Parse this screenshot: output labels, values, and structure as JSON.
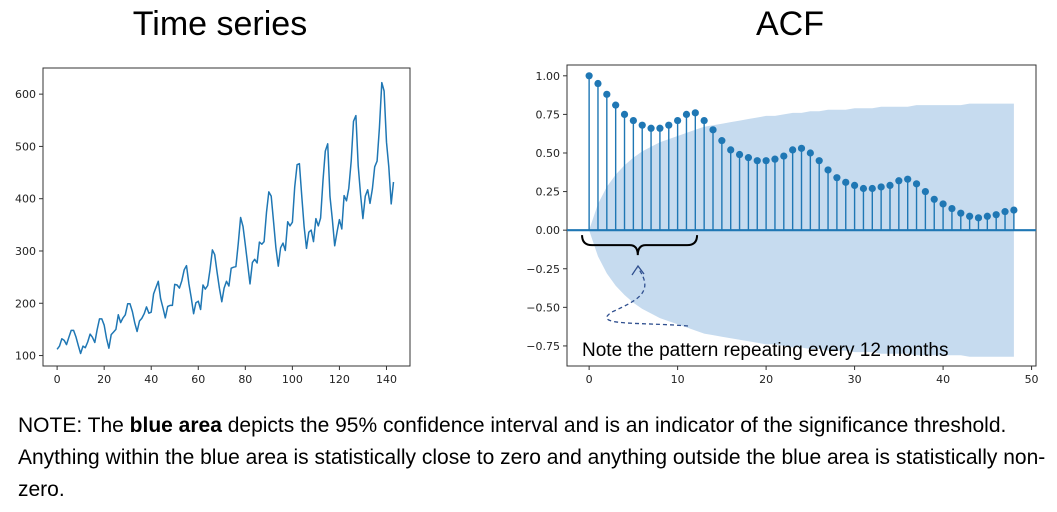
{
  "titles": {
    "left": "Time series",
    "right": "ACF"
  },
  "annotation": "Note the pattern repeating every 12 months",
  "footnote": {
    "prefix": "NOTE: The ",
    "bold": "blue area",
    "suffix": " depicts the 95% confidence interval and is an indicator of the significance threshold. Anything within the blue area is statistically close to zero and anything outside the blue area is statistically non-zero."
  },
  "colors": {
    "line": "#1f77b4",
    "band": "#c6dbef"
  },
  "chart_data": [
    {
      "type": "line",
      "title": "Time series",
      "xlabel": "",
      "ylabel": "",
      "xlim": [
        -6,
        150
      ],
      "ylim": [
        80,
        650
      ],
      "xticks": [
        0,
        20,
        40,
        60,
        80,
        100,
        120,
        140
      ],
      "yticks": [
        100,
        200,
        300,
        400,
        500,
        600
      ],
      "grid": false,
      "series": [
        {
          "values": [
            112,
            118,
            132,
            129,
            121,
            135,
            148,
            148,
            136,
            119,
            104,
            118,
            115,
            126,
            141,
            135,
            125,
            149,
            170,
            170,
            158,
            133,
            114,
            140,
            145,
            150,
            178,
            163,
            172,
            178,
            199,
            199,
            184,
            162,
            146,
            166,
            171,
            180,
            193,
            181,
            183,
            218,
            230,
            242,
            209,
            191,
            172,
            194,
            196,
            196,
            236,
            235,
            229,
            243,
            264,
            272,
            237,
            211,
            180,
            201,
            204,
            188,
            235,
            227,
            234,
            264,
            302,
            293,
            259,
            229,
            203,
            229,
            242,
            233,
            267,
            269,
            270,
            315,
            364,
            347,
            312,
            274,
            237,
            278,
            284,
            277,
            317,
            313,
            318,
            374,
            413,
            405,
            355,
            306,
            271,
            306,
            315,
            301,
            356,
            348,
            355,
            422,
            465,
            467,
            404,
            347,
            305,
            336,
            340,
            318,
            362,
            348,
            363,
            435,
            491,
            505,
            404,
            359,
            310,
            337,
            360,
            342,
            406,
            396,
            420,
            472,
            548,
            559,
            463,
            407,
            362,
            405,
            417,
            391,
            419,
            461,
            472,
            535,
            622,
            606,
            508,
            461,
            390,
            432
          ]
        }
      ]
    },
    {
      "type": "scatter",
      "title": "ACF",
      "xlabel": "",
      "ylabel": "",
      "xlim": [
        -2.5,
        50.5
      ],
      "ylim": [
        -0.88,
        1.07
      ],
      "xticks": [
        0,
        10,
        20,
        30,
        40,
        50
      ],
      "yticks": [
        1.0,
        0.75,
        0.5,
        0.25,
        0.0,
        -0.25,
        -0.5,
        -0.75
      ],
      "grid": false,
      "lags": [
        0,
        1,
        2,
        3,
        4,
        5,
        6,
        7,
        8,
        9,
        10,
        11,
        12,
        13,
        14,
        15,
        16,
        17,
        18,
        19,
        20,
        21,
        22,
        23,
        24,
        25,
        26,
        27,
        28,
        29,
        30,
        31,
        32,
        33,
        34,
        35,
        36,
        37,
        38,
        39,
        40,
        41,
        42,
        43,
        44,
        45,
        46,
        47,
        48
      ],
      "values": [
        1.0,
        0.95,
        0.88,
        0.81,
        0.75,
        0.71,
        0.68,
        0.66,
        0.66,
        0.68,
        0.71,
        0.75,
        0.76,
        0.71,
        0.65,
        0.58,
        0.52,
        0.49,
        0.47,
        0.45,
        0.45,
        0.46,
        0.48,
        0.52,
        0.53,
        0.5,
        0.45,
        0.39,
        0.34,
        0.31,
        0.29,
        0.27,
        0.27,
        0.28,
        0.29,
        0.32,
        0.33,
        0.3,
        0.25,
        0.2,
        0.17,
        0.14,
        0.11,
        0.09,
        0.08,
        0.09,
        0.1,
        0.12,
        0.13
      ],
      "confidence_upper": [
        0.0,
        0.17,
        0.28,
        0.36,
        0.42,
        0.47,
        0.51,
        0.54,
        0.57,
        0.59,
        0.61,
        0.63,
        0.65,
        0.67,
        0.68,
        0.69,
        0.7,
        0.71,
        0.72,
        0.73,
        0.74,
        0.74,
        0.75,
        0.76,
        0.76,
        0.77,
        0.77,
        0.78,
        0.78,
        0.78,
        0.79,
        0.79,
        0.79,
        0.8,
        0.8,
        0.8,
        0.8,
        0.81,
        0.81,
        0.81,
        0.81,
        0.81,
        0.81,
        0.82,
        0.82,
        0.82,
        0.82,
        0.82,
        0.82
      ]
    }
  ]
}
